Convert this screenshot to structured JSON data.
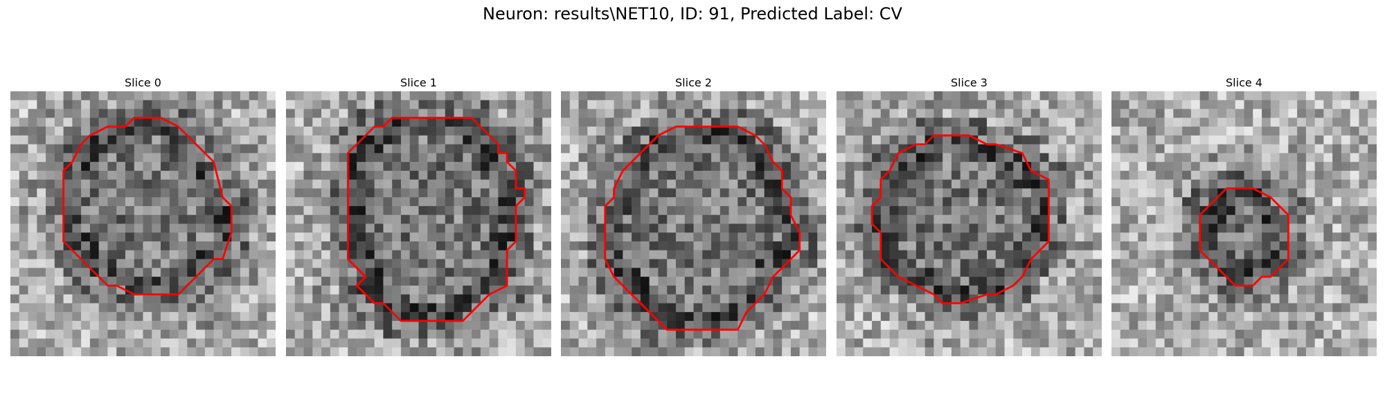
{
  "figure": {
    "title": "Neuron: results\\NET10, ID: 91, Predicted Label: CV"
  },
  "colors": {
    "contour": "#ff0000",
    "background": "#ffffff"
  },
  "chart_data": {
    "type": "image-grid",
    "colormap": "grayscale",
    "grid": {
      "rows": 30,
      "cols": 30
    },
    "overlay": "red ROI contour",
    "panels": [
      {
        "title": "Slice 0",
        "seed": 11,
        "contour": [
          [
            14,
            3
          ],
          [
            17,
            3
          ],
          [
            19,
            4
          ],
          [
            20,
            5
          ],
          [
            21,
            6
          ],
          [
            23,
            8
          ],
          [
            24,
            12
          ],
          [
            25,
            13
          ],
          [
            25,
            16
          ],
          [
            24,
            19
          ],
          [
            23,
            19
          ],
          [
            22,
            20
          ],
          [
            20,
            22
          ],
          [
            19,
            23
          ],
          [
            14,
            23
          ],
          [
            12,
            22
          ],
          [
            11,
            22
          ],
          [
            9,
            20
          ],
          [
            7,
            18
          ],
          [
            6,
            17
          ],
          [
            6,
            9
          ],
          [
            7,
            8
          ],
          [
            8,
            6
          ],
          [
            9,
            5
          ],
          [
            11,
            4
          ],
          [
            13,
            4
          ]
        ]
      },
      {
        "title": "Slice 1",
        "seed": 23,
        "contour": [
          [
            12,
            3
          ],
          [
            21,
            3
          ],
          [
            23,
            5
          ],
          [
            24,
            6
          ],
          [
            24,
            7
          ],
          [
            25,
            7
          ],
          [
            25,
            8
          ],
          [
            26,
            9
          ],
          [
            26,
            11
          ],
          [
            27,
            11
          ],
          [
            27,
            12
          ],
          [
            26,
            13
          ],
          [
            26,
            17
          ],
          [
            25,
            18
          ],
          [
            25,
            22
          ],
          [
            23,
            23
          ],
          [
            21,
            25
          ],
          [
            20,
            26
          ],
          [
            13,
            26
          ],
          [
            11,
            24
          ],
          [
            10,
            24
          ],
          [
            9,
            23
          ],
          [
            8,
            22
          ],
          [
            9,
            21
          ],
          [
            8,
            20
          ],
          [
            7,
            19
          ],
          [
            7,
            7
          ],
          [
            9,
            5
          ],
          [
            10,
            4
          ],
          [
            11,
            4
          ]
        ]
      },
      {
        "title": "Slice 2",
        "seed": 37,
        "contour": [
          [
            13,
            4
          ],
          [
            20,
            4
          ],
          [
            22,
            5
          ],
          [
            23,
            6
          ],
          [
            24,
            8
          ],
          [
            25,
            9
          ],
          [
            25,
            11
          ],
          [
            26,
            12
          ],
          [
            26,
            14
          ],
          [
            27,
            16
          ],
          [
            27,
            18
          ],
          [
            25,
            20
          ],
          [
            24,
            21
          ],
          [
            23,
            23
          ],
          [
            21,
            25
          ],
          [
            20,
            27
          ],
          [
            12,
            27
          ],
          [
            11,
            26
          ],
          [
            9,
            24
          ],
          [
            8,
            23
          ],
          [
            6,
            21
          ],
          [
            5,
            19
          ],
          [
            5,
            13
          ],
          [
            6,
            12
          ],
          [
            6,
            11
          ],
          [
            7,
            9
          ],
          [
            8,
            8
          ],
          [
            10,
            6
          ],
          [
            11,
            5
          ]
        ]
      },
      {
        "title": "Slice 3",
        "seed": 53,
        "contour": [
          [
            12,
            5
          ],
          [
            15,
            5
          ],
          [
            17,
            6
          ],
          [
            18,
            6
          ],
          [
            21,
            7
          ],
          [
            22,
            9
          ],
          [
            24,
            10
          ],
          [
            24,
            17
          ],
          [
            22,
            19
          ],
          [
            21,
            21
          ],
          [
            20,
            22
          ],
          [
            18,
            23
          ],
          [
            17,
            23
          ],
          [
            14,
            24
          ],
          [
            12,
            24
          ],
          [
            11,
            23
          ],
          [
            9,
            22
          ],
          [
            7,
            21
          ],
          [
            6,
            20
          ],
          [
            5,
            19
          ],
          [
            5,
            16
          ],
          [
            4,
            15
          ],
          [
            4,
            13
          ],
          [
            5,
            12
          ],
          [
            5,
            10
          ],
          [
            6,
            9
          ],
          [
            7,
            7
          ],
          [
            9,
            6
          ],
          [
            10,
            6
          ],
          [
            11,
            5
          ]
        ]
      },
      {
        "title": "Slice 4",
        "seed": 71,
        "contour": [
          [
            13,
            11
          ],
          [
            16,
            11
          ],
          [
            18,
            12
          ],
          [
            19,
            13
          ],
          [
            20,
            14
          ],
          [
            20,
            19
          ],
          [
            18,
            21
          ],
          [
            17,
            21
          ],
          [
            16,
            22
          ],
          [
            14,
            22
          ],
          [
            12,
            20
          ],
          [
            11,
            19
          ],
          [
            10,
            18
          ],
          [
            10,
            14
          ],
          [
            11,
            13
          ],
          [
            12,
            12
          ]
        ]
      }
    ]
  }
}
